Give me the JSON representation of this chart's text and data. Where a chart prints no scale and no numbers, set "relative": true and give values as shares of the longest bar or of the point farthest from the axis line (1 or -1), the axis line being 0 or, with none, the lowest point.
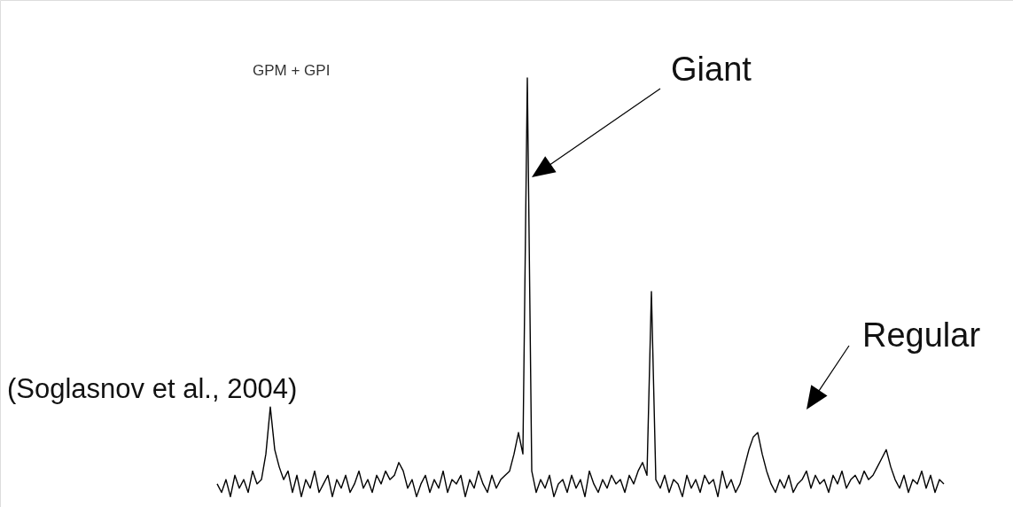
{
  "chart_data": {
    "type": "line",
    "relative": true,
    "marker": "none",
    "line_style": "solid",
    "categories": [
      null,
      null,
      null,
      null,
      null,
      null,
      null,
      null,
      null,
      null,
      null,
      null,
      null,
      null,
      null,
      null,
      null,
      null,
      null,
      null,
      null,
      null,
      null,
      null,
      null,
      null,
      null,
      null,
      null,
      null,
      null,
      null,
      null,
      null,
      null,
      null,
      null,
      null,
      null,
      null,
      null,
      null,
      null,
      null,
      null,
      null,
      null,
      null,
      null,
      null,
      null,
      null,
      null,
      null,
      null,
      null,
      null,
      null,
      null,
      null,
      null,
      null,
      null,
      null,
      null,
      null,
      null,
      null,
      null,
      null,
      null,
      null,
      null,
      null,
      null,
      null,
      null,
      null,
      null,
      null,
      null,
      null,
      null,
      null,
      null,
      null,
      null,
      null,
      null,
      null,
      null,
      null,
      null,
      null,
      null,
      null,
      null,
      null,
      null,
      null,
      null,
      null,
      null,
      null,
      null,
      null,
      null,
      null,
      null,
      null,
      null,
      null,
      null,
      null,
      null,
      null,
      null,
      null,
      null,
      null,
      null,
      null,
      null,
      null,
      null,
      null,
      null,
      null,
      null,
      null,
      null,
      null,
      null,
      null,
      null,
      null,
      null,
      null,
      null,
      null,
      null,
      null,
      null,
      null,
      null,
      null,
      null,
      null,
      null,
      null,
      null,
      null,
      null,
      null,
      null,
      null,
      null,
      null,
      null,
      null,
      null,
      null,
      null,
      null,
      null
    ],
    "series": [
      {
        "color": "#000000",
        "values": [
          0.05,
          0.03,
          0.06,
          0.02,
          0.07,
          0.04,
          0.06,
          0.03,
          0.08,
          0.05,
          0.06,
          0.12,
          0.23,
          0.13,
          0.09,
          0.06,
          0.08,
          0.03,
          0.07,
          0.02,
          0.06,
          0.04,
          0.08,
          0.03,
          0.05,
          0.07,
          0.02,
          0.06,
          0.04,
          0.07,
          0.03,
          0.05,
          0.08,
          0.04,
          0.06,
          0.03,
          0.07,
          0.05,
          0.08,
          0.06,
          0.07,
          0.1,
          0.08,
          0.04,
          0.06,
          0.02,
          0.05,
          0.07,
          0.03,
          0.06,
          0.04,
          0.08,
          0.03,
          0.06,
          0.05,
          0.07,
          0.02,
          0.06,
          0.04,
          0.08,
          0.05,
          0.03,
          0.07,
          0.04,
          0.06,
          0.07,
          0.08,
          0.12,
          0.17,
          0.12,
          1.0,
          0.08,
          0.03,
          0.06,
          0.04,
          0.07,
          0.02,
          0.05,
          0.06,
          0.03,
          0.07,
          0.04,
          0.06,
          0.02,
          0.08,
          0.05,
          0.03,
          0.06,
          0.04,
          0.07,
          0.05,
          0.06,
          0.03,
          0.07,
          0.05,
          0.08,
          0.1,
          0.07,
          0.5,
          0.06,
          0.04,
          0.07,
          0.03,
          0.06,
          0.05,
          0.02,
          0.07,
          0.04,
          0.06,
          0.03,
          0.07,
          0.05,
          0.06,
          0.02,
          0.08,
          0.04,
          0.06,
          0.03,
          0.05,
          0.09,
          0.13,
          0.16,
          0.17,
          0.12,
          0.08,
          0.05,
          0.03,
          0.06,
          0.04,
          0.07,
          0.03,
          0.05,
          0.06,
          0.08,
          0.04,
          0.07,
          0.05,
          0.06,
          0.03,
          0.07,
          0.05,
          0.08,
          0.04,
          0.06,
          0.07,
          0.05,
          0.08,
          0.06,
          0.07,
          0.09,
          0.11,
          0.13,
          0.09,
          0.06,
          0.04,
          0.07,
          0.03,
          0.06,
          0.05,
          0.08,
          0.04,
          0.07,
          0.03,
          0.06,
          0.05
        ]
      }
    ],
    "annotations": [
      "GPM + GPI",
      "Giant",
      "Regular",
      "(Soglasnov et al., 2004)"
    ]
  }
}
